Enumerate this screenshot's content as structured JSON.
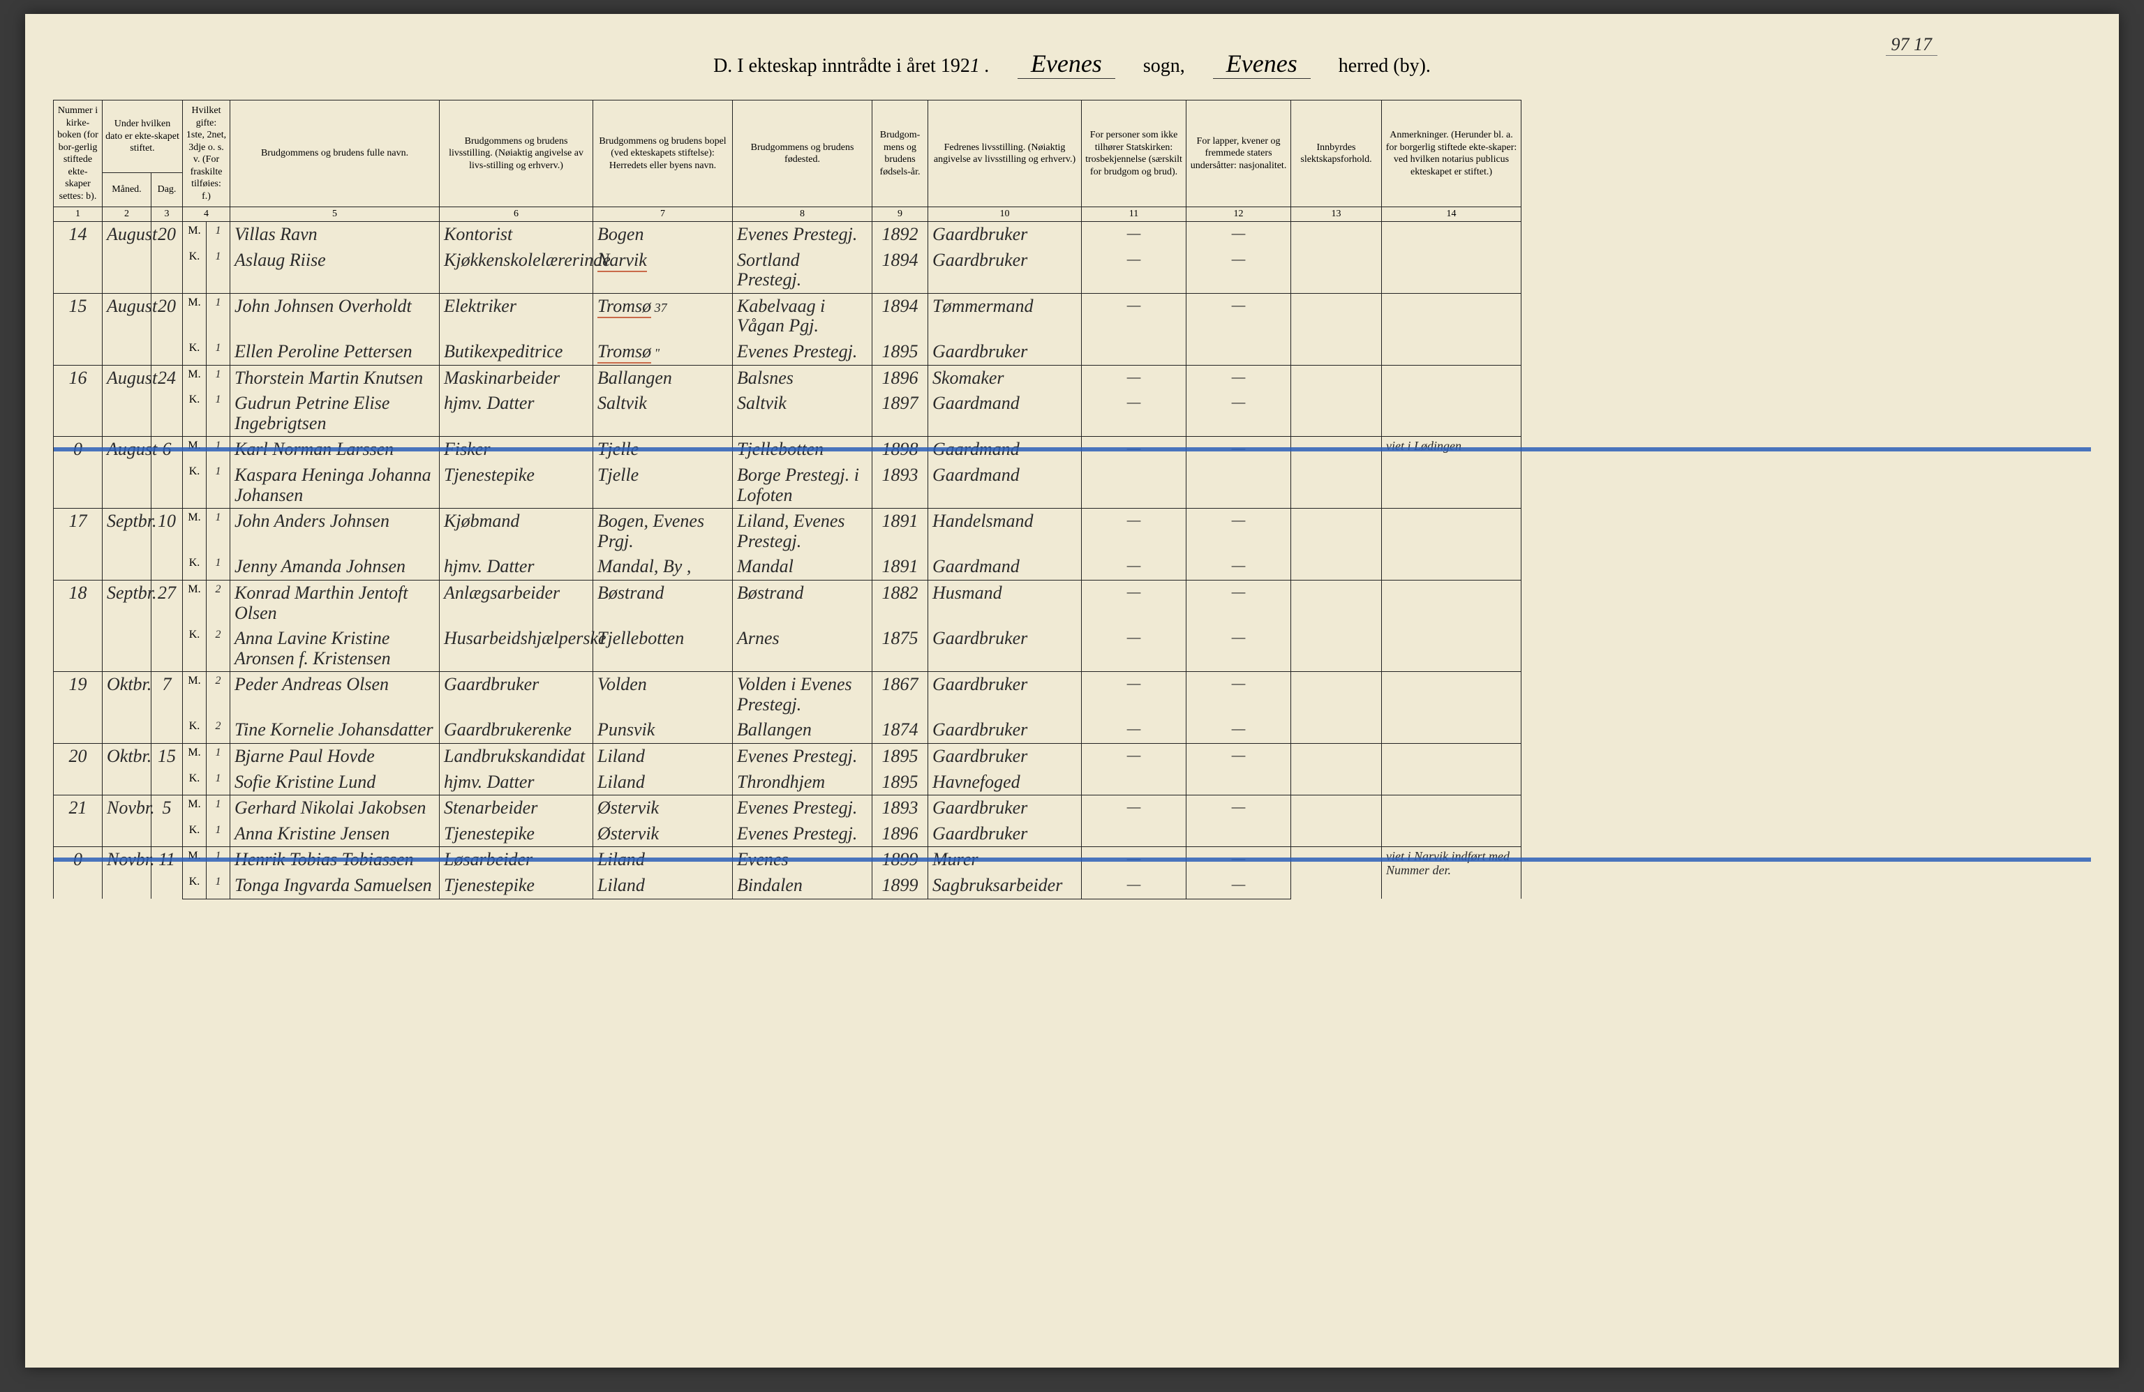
{
  "folio": "97 17",
  "header": {
    "title_left": "D.  I ekteskap inntrådte i året 192",
    "year_suffix": "1 .",
    "sogn_value": "Evenes",
    "sogn_label": "sogn,",
    "herred_value": "Evenes",
    "herred_label": "herred (by)."
  },
  "columns": {
    "c1": "Nummer i kirke-boken (for bor-gerlig stiftede ekte-skaper settes: b).",
    "c2_3": "Under hvilken dato er ekte-skapet stiftet.",
    "c2": "Måned.",
    "c3": "Dag.",
    "c4": "Hvilket gifte: 1ste, 2net, 3dje o. s. v. (For fraskilte tilføies: f.)",
    "c5": "Brudgommens og brudens fulle navn.",
    "c6": "Brudgommens og brudens livsstilling. (Nøiaktig angivelse av livs-stilling og erhverv.)",
    "c7": "Brudgommens og brudens bopel (ved ekteskapets stiftelse): Herredets eller byens navn.",
    "c8": "Brudgommens og brudens fødested.",
    "c9": "Brudgom-mens og brudens fødsels-år.",
    "c10": "Fedrenes livsstilling. (Nøiaktig angivelse av livsstilling og erhverv.)",
    "c11": "For personer som ikke tilhører Statskirken: trosbekjennelse (særskilt for brudgom og brud).",
    "c12": "For lapper, kvener og fremmede staters undersåtter: nasjonalitet.",
    "c13": "Innbyrdes slektskapsforhold.",
    "c14": "Anmerkninger. (Herunder bl. a. for borgerlig stiftede ekte-skaper: ved hvilken notarius publicus ekteskapet er stiftet.)"
  },
  "colnums": [
    "1",
    "2",
    "3",
    "4",
    "5",
    "6",
    "7",
    "8",
    "9",
    "10",
    "11",
    "12",
    "13",
    "14"
  ],
  "rows": [
    {
      "num": "14",
      "month": "August",
      "day": "20",
      "struck": false,
      "m": {
        "gifte": "1",
        "name": "Villas Ravn",
        "stilling": "Kontorist",
        "bopel": "Bogen",
        "fodested": "Evenes Prestegj.",
        "aar": "1892",
        "far": "Gaardbruker",
        "c11": "—",
        "c12": "—"
      },
      "k": {
        "gifte": "1",
        "name": "Aslaug Riise",
        "stilling": "Kjøkkenskolelærerinde",
        "bopel": "Narvik",
        "bopel_red": true,
        "fodested": "Sortland Prestegj.",
        "aar": "1894",
        "far": "Gaardbruker",
        "c11": "—",
        "c12": "—"
      },
      "anm": ""
    },
    {
      "num": "15",
      "month": "August",
      "day": "20",
      "struck": false,
      "m": {
        "gifte": "1",
        "name": "John Johnsen Overholdt",
        "stilling": "Elektriker",
        "bopel": "Tromsø",
        "bopel_red": true,
        "bopel_note": "37",
        "fodested": "Kabelvaag i Vågan Pgj.",
        "aar": "1894",
        "far": "Tømmermand",
        "c11": "—",
        "c12": "—"
      },
      "k": {
        "gifte": "1",
        "name": "Ellen Peroline Pettersen",
        "stilling": "Butikexpeditrice",
        "bopel": "Tromsø",
        "bopel_red": true,
        "bopel_note": "\"",
        "fodested": "Evenes Prestegj.",
        "aar": "1895",
        "far": "Gaardbruker",
        "c11": "",
        "c12": ""
      },
      "anm": ""
    },
    {
      "num": "16",
      "month": "August",
      "day": "24",
      "struck": false,
      "m": {
        "gifte": "1",
        "name": "Thorstein Martin Knutsen",
        "stilling": "Maskinarbeider",
        "bopel": "Ballangen",
        "fodested": "Balsnes",
        "aar": "1896",
        "far": "Skomaker",
        "c11": "—",
        "c12": "—"
      },
      "k": {
        "gifte": "1",
        "name": "Gudrun Petrine Elise Ingebrigtsen",
        "stilling": "hjmv. Datter",
        "bopel": "Saltvik",
        "fodested": "Saltvik",
        "aar": "1897",
        "far": "Gaardmand",
        "c11": "—",
        "c12": "—"
      },
      "anm": ""
    },
    {
      "num": "0",
      "month": "August",
      "day": "6",
      "struck": true,
      "m": {
        "gifte": "1",
        "name": "Karl Norman Larssen",
        "stilling": "Fisker",
        "bopel": "Tjelle",
        "fodested": "Tjellebotten",
        "aar": "1898",
        "far": "Gaardmand",
        "c11": "—",
        "c12": "—"
      },
      "k": {
        "gifte": "1",
        "name": "Kaspara Heninga Johanna Johansen",
        "stilling": "Tjenestepike",
        "bopel": "Tjelle",
        "fodested": "Borge Prestegj. i Lofoten",
        "aar": "1893",
        "far": "Gaardmand",
        "c11": "",
        "c12": ""
      },
      "anm": "viet i Lødingen"
    },
    {
      "num": "17",
      "month": "Septbr.",
      "day": "10",
      "struck": false,
      "m": {
        "gifte": "1",
        "name": "John Anders Johnsen",
        "stilling": "Kjøbmand",
        "bopel": "Bogen, Evenes Prgj.",
        "fodested": "Liland, Evenes Prestegj.",
        "aar": "1891",
        "far": "Handelsmand",
        "c11": "—",
        "c12": "—"
      },
      "k": {
        "gifte": "1",
        "name": "Jenny Amanda Johnsen",
        "stilling": "hjmv. Datter",
        "bopel": "Mandal, By ,",
        "fodested": "Mandal",
        "aar": "1891",
        "far": "Gaardmand",
        "c11": "—",
        "c12": "—"
      },
      "anm": ""
    },
    {
      "num": "18",
      "month": "Septbr.",
      "day": "27",
      "struck": false,
      "m": {
        "gifte": "2",
        "name": "Konrad Marthin Jentoft Olsen",
        "stilling": "Anlægsarbeider",
        "bopel": "Bøstrand",
        "fodested": "Bøstrand",
        "aar": "1882",
        "far": "Husmand",
        "c11": "—",
        "c12": "—"
      },
      "k": {
        "gifte": "2",
        "name": "Anna Lavine Kristine Aronsen f. Kristensen",
        "stilling": "Husarbeidshjælperske",
        "bopel": "Tjellebotten",
        "fodested": "Arnes",
        "aar": "1875",
        "far": "Gaardbruker",
        "c11": "—",
        "c12": "—"
      },
      "anm": ""
    },
    {
      "num": "19",
      "month": "Oktbr.",
      "day": "7",
      "struck": false,
      "m": {
        "gifte": "2",
        "name": "Peder Andreas Olsen",
        "stilling": "Gaardbruker",
        "bopel": "Volden",
        "fodested": "Volden i Evenes Prestegj.",
        "aar": "1867",
        "far": "Gaardbruker",
        "c11": "—",
        "c12": "—"
      },
      "k": {
        "gifte": "2",
        "name": "Tine Kornelie Johansdatter",
        "stilling": "Gaardbrukerenke",
        "bopel": "Punsvik",
        "fodested": "Ballangen",
        "aar": "1874",
        "far": "Gaardbruker",
        "c11": "—",
        "c12": "—"
      },
      "anm": ""
    },
    {
      "num": "20",
      "month": "Oktbr.",
      "day": "15",
      "struck": false,
      "m": {
        "gifte": "1",
        "name": "Bjarne Paul Hovde",
        "stilling": "Landbrukskandidat",
        "bopel": "Liland",
        "fodested": "Evenes Prestegj.",
        "aar": "1895",
        "far": "Gaardbruker",
        "c11": "—",
        "c12": "—"
      },
      "k": {
        "gifte": "1",
        "name": "Sofie Kristine Lund",
        "stilling": "hjmv. Datter",
        "bopel": "Liland",
        "fodested": "Throndhjem",
        "aar": "1895",
        "far": "Havnefoged",
        "c11": "",
        "c12": ""
      },
      "anm": ""
    },
    {
      "num": "21",
      "month": "Novbr.",
      "day": "5",
      "struck": false,
      "m": {
        "gifte": "1",
        "name": "Gerhard Nikolai Jakobsen",
        "stilling": "Stenarbeider",
        "bopel": "Østervik",
        "fodested": "Evenes Prestegj.",
        "aar": "1893",
        "far": "Gaardbruker",
        "c11": "—",
        "c12": "—"
      },
      "k": {
        "gifte": "1",
        "name": "Anna Kristine Jensen",
        "stilling": "Tjenestepike",
        "bopel": "Østervik",
        "fodested": "Evenes Prestegj.",
        "aar": "1896",
        "far": "Gaardbruker",
        "c11": "",
        "c12": ""
      },
      "anm": ""
    },
    {
      "num": "0",
      "month": "Novbr.",
      "day": "11",
      "struck": true,
      "m": {
        "gifte": "1",
        "name": "Henrik Tobias Tobiassen",
        "stilling": "Løsarbeider",
        "bopel": "Liland",
        "fodested": "Evenes",
        "aar": "1899",
        "far": "Murer",
        "c11": "—",
        "c12": "—"
      },
      "k": {
        "gifte": "1",
        "name": "Tonga Ingvarda Samuelsen",
        "stilling": "Tjenestepike",
        "bopel": "Liland",
        "fodested": "Bindalen",
        "aar": "1899",
        "far": "Sagbruksarbeider",
        "c11": "—",
        "c12": "—"
      },
      "anm": "viet i Narvik indført med Nummer der."
    }
  ],
  "mk": {
    "m": "M.",
    "k": "K."
  },
  "colors": {
    "paper": "#f0ead4",
    "ink": "#2a2a2a",
    "blue": "#2b5fb8",
    "red": "#c96a4a"
  }
}
